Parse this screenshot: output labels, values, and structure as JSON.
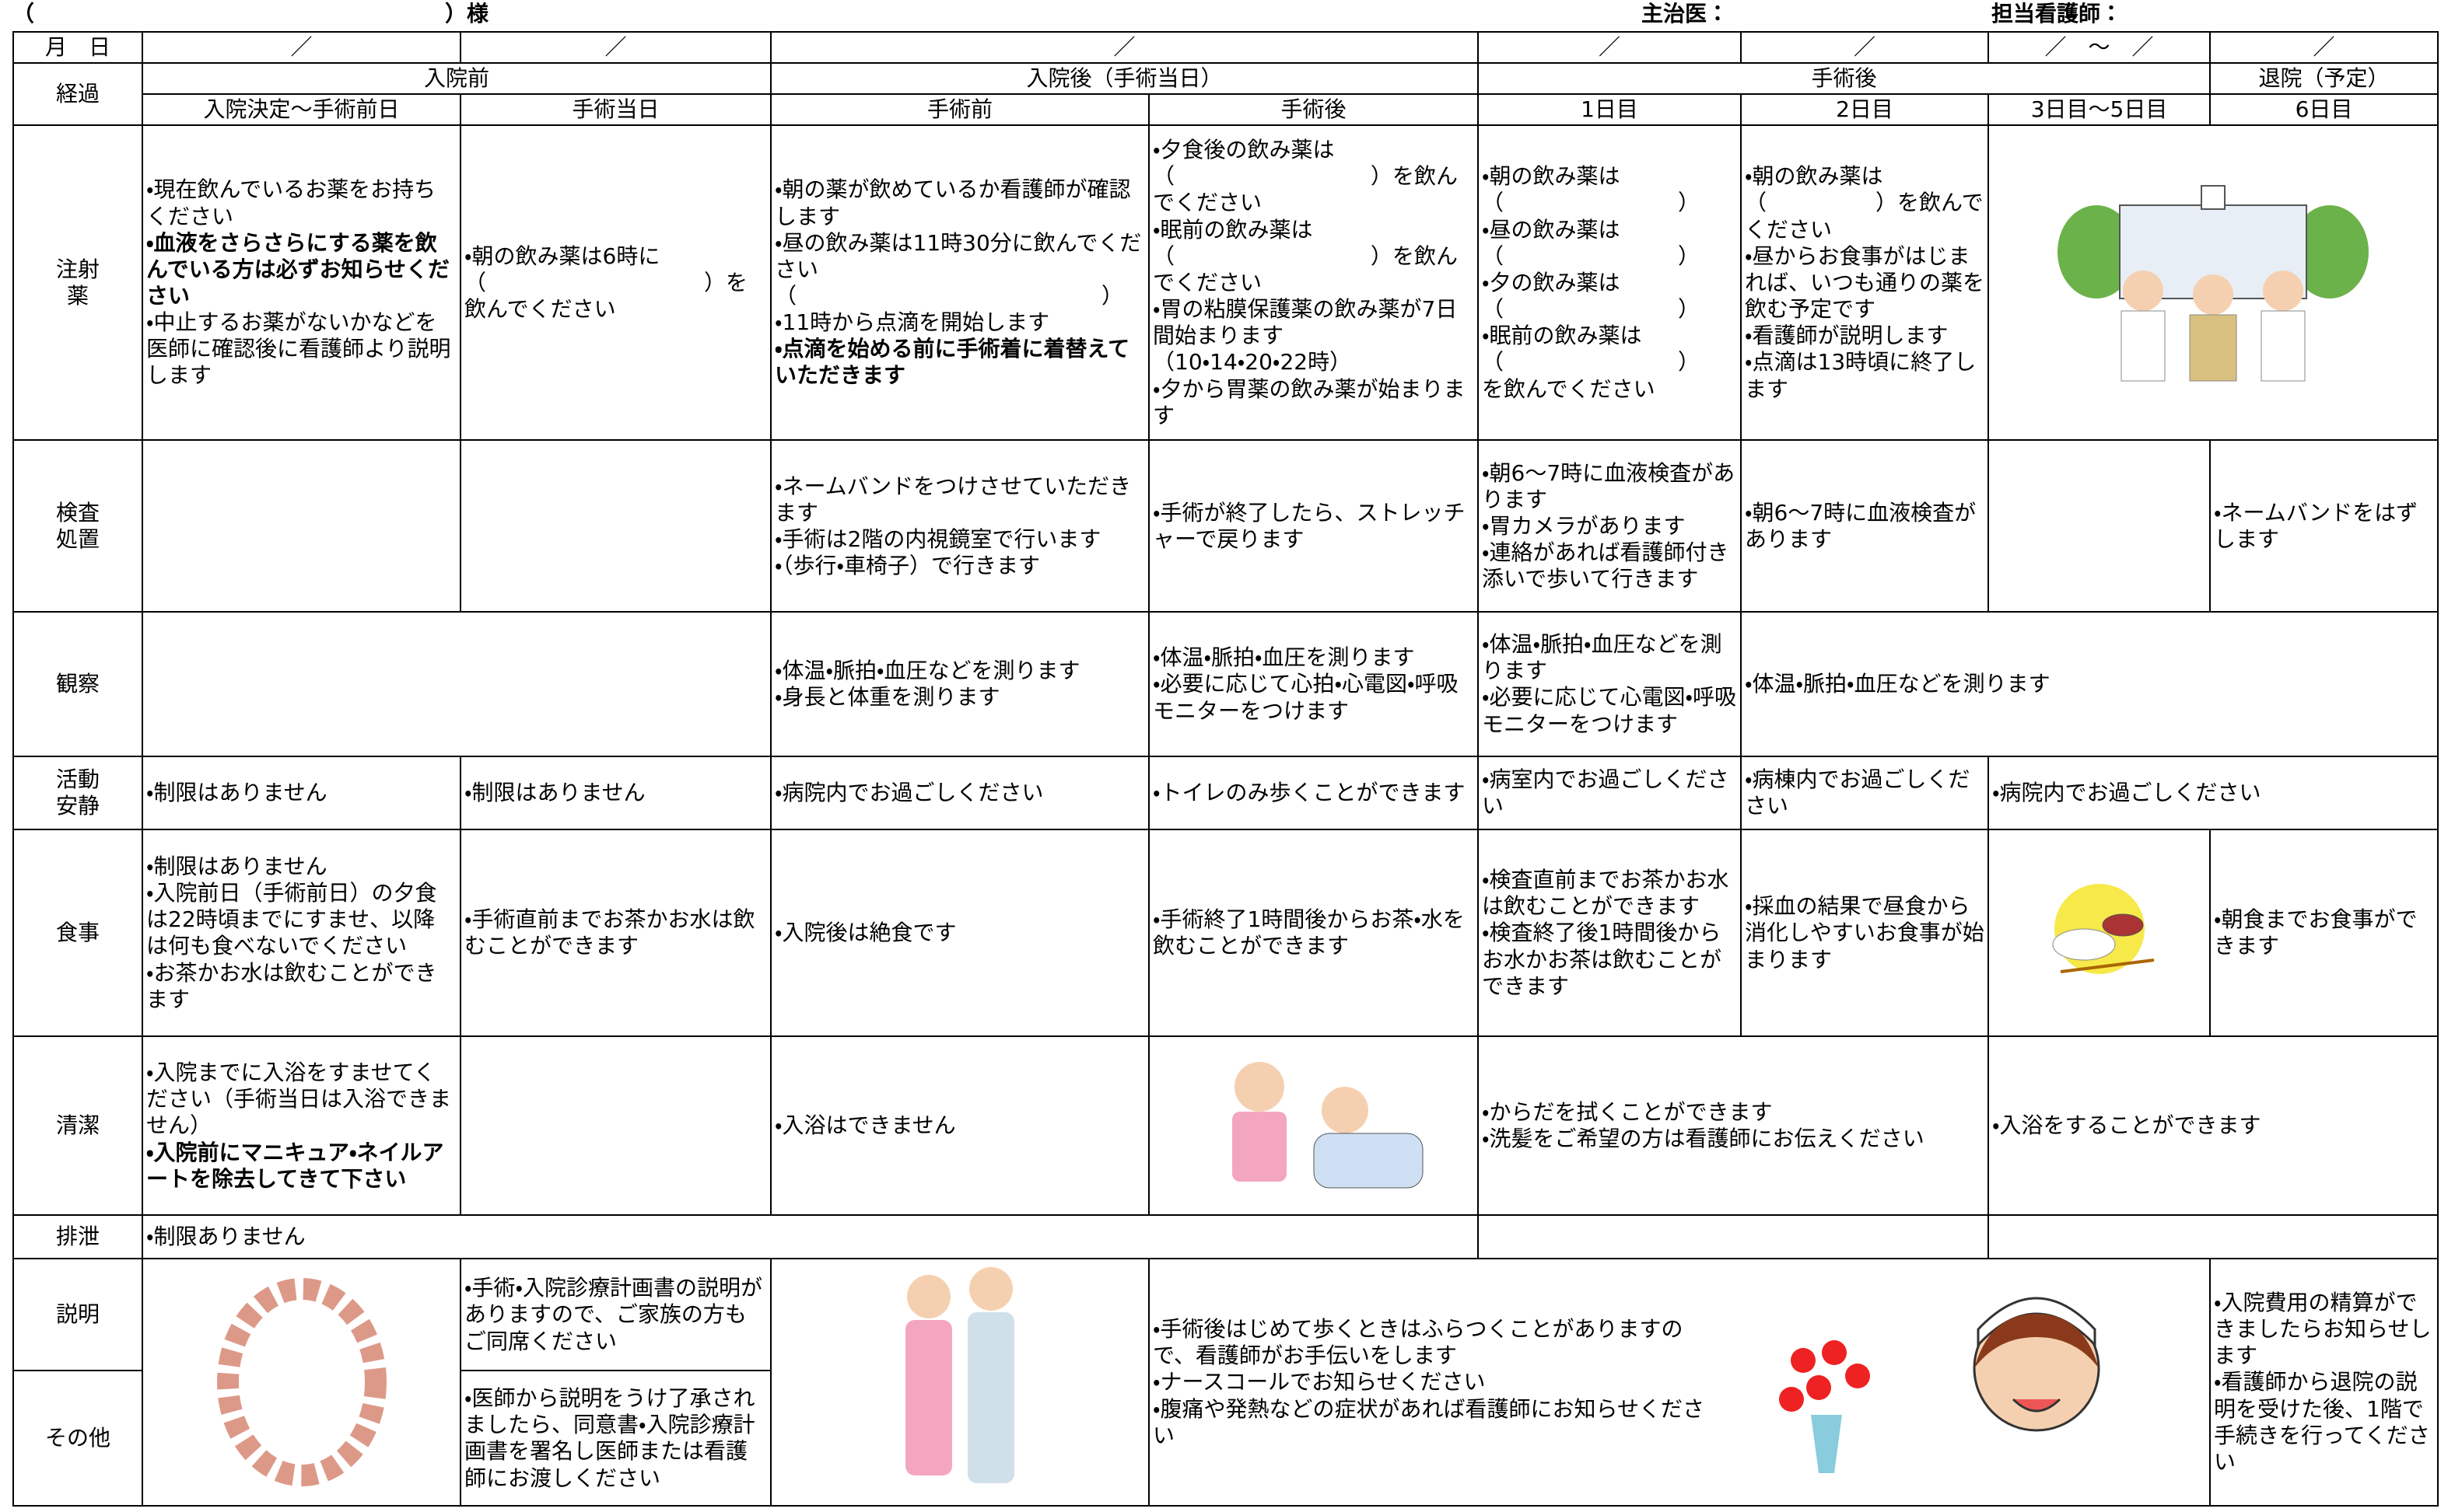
{
  "header": {
    "name_open": "（",
    "name_close": "）様",
    "doctor": "主治医：",
    "nurse": "担当看護師："
  },
  "table": {
    "date_row": {
      "label": "月　日",
      "cells": [
        "／",
        "／",
        "／",
        "／",
        "／",
        "／　〜　／",
        "／"
      ]
    },
    "progress": {
      "label": "経過",
      "groups": [
        "入院前",
        "入院後（手術当日）",
        "手術後",
        "退院（予定）"
      ],
      "days": [
        "入院決定～手術前日",
        "手術当日",
        "手術前",
        "手術後",
        "1日目",
        "2日目",
        "3日目～5日目",
        "6日目"
      ]
    },
    "rows": [
      {
        "label": [
          "注射",
          "薬"
        ],
        "cells": [
          [
            "・現在飲んでいるお薬をお持ちください",
            {
              "text": "・血液をさらさらにする薬を飲んでいる方は必ずお知らせください",
              "bold": true
            },
            "・中止するお薬がないかなどを医師に確認後に看護師より説明します"
          ],
          [
            "・朝の飲み薬は6時に",
            "（　　　　　　　　　　）を飲んでください"
          ],
          [
            "・朝の薬が飲めているか看護師が確認します",
            "・昼の飲み薬は11時30分に飲んでください",
            "（　　　　　　　　　　　　　　）",
            "・11時から点滴を開始します",
            {
              "text": "・点滴を始める前に手術着に着替えていただきます",
              "bold": true
            }
          ],
          [
            "・夕食後の飲み薬は",
            "（　　　　　　　　　）を飲んでください",
            "・眠前の飲み薬は",
            "（　　　　　　　　　）を飲んでください",
            "・胃の粘膜保護薬の飲み薬が7日間始まります",
            "（10・14・20・22時）",
            "・夕から胃薬の飲み薬が始まります"
          ],
          [
            "・朝の飲み薬は",
            "（　　　　　　　　）",
            "・昼の飲み薬は",
            "（　　　　　　　　）",
            "・夕の飲み薬は",
            "（　　　　　　　　）",
            "・眠前の飲み薬は",
            "（　　　　　　　　）",
            "を飲んでください"
          ],
          [
            "・朝の飲み薬は",
            "（　　　　　）を飲んでください",
            "・昼からお食事がはじまれば、いつも通りの薬を飲む予定です",
            "・看護師が説明します",
            "・点滴は13時頃に終了します"
          ],
          []
        ]
      },
      {
        "label": [
          "検査",
          "処置"
        ],
        "cells": [
          [],
          [],
          [
            "・ネームバンドをつけさせていただきます",
            "・手術は2階の内視鏡室で行います",
            "・（歩行・車椅子）で行きます"
          ],
          [
            "・手術が終了したら、ストレッチャーで戻ります"
          ],
          [
            "・朝6～7時に血液検査があります",
            "・胃カメラがあります",
            "・連絡があれば看護師付き添いで歩いて行きます"
          ],
          [
            "・朝6～7時に血液検査があります"
          ],
          [],
          [
            "・ネームバンドをはずします"
          ]
        ]
      },
      {
        "label": [
          "観察"
        ],
        "cells": [
          [],
          [
            "・体温・脈拍・血圧などを測ります",
            "・身長と体重を測ります"
          ],
          [
            "・体温・脈拍・血圧を測ります",
            "・必要に応じて心拍・心電図・呼吸モニターをつけます"
          ],
          [
            "・体温・脈拍・血圧などを測ります",
            "・必要に応じて心電図・呼吸モニターをつけます"
          ],
          [
            "・体温・脈拍・血圧などを測ります"
          ]
        ]
      },
      {
        "label": [
          "活動",
          "安静"
        ],
        "cells": [
          [
            "・制限はありません"
          ],
          [
            "・制限はありません"
          ],
          [
            "・病院内でお過ごしください"
          ],
          [
            "・トイレのみ歩くことができます"
          ],
          [
            "・病室内でお過ごしください"
          ],
          [
            "・病棟内でお過ごしください"
          ],
          [
            "・病院内でお過ごしください"
          ]
        ]
      },
      {
        "label": [
          "食事"
        ],
        "cells": [
          [
            "・制限はありません",
            "・入院前日（手術前日）の夕食は22時頃までにすませ、以降は何も食べないでください",
            "・お茶かお水は飲むことができます"
          ],
          [
            "・手術直前までお茶かお水は飲むことができます"
          ],
          [
            "・入院後は絶食です"
          ],
          [
            "・手術終了1時間後からお茶・水を飲むことができます"
          ],
          [
            "・検査直前までお茶かお水は飲むことができます",
            "・検査終了後1時間後からお水かお茶は飲むことができます"
          ],
          [
            "・採血の結果で昼食から消化しやすいお食事が始まります"
          ],
          [],
          [
            "・朝食までお食事ができます"
          ]
        ]
      },
      {
        "label": [
          "清潔"
        ],
        "cells": [
          [
            "・入院までに入浴をすませてください（手術当日は入浴できません）",
            {
              "text": "・入院前にマニキュア・ネイルアートを除去してきて下さい",
              "bold": true
            }
          ],
          [],
          [
            "・入浴はできません"
          ],
          [],
          [
            "・からだを拭くことができます",
            "・洗髪をご希望の方は看護師にお伝えください"
          ],
          [
            "・入浴をすることができます"
          ]
        ]
      },
      {
        "label": [
          "排泄"
        ],
        "cells": [
          [
            "・制限ありません"
          ],
          [],
          []
        ]
      },
      {
        "label": [
          "説明"
        ],
        "cells": [
          [],
          [
            "・手術・入院診療計画書の説明がありますので、ご家族の方もご同席ください"
          ],
          [],
          [
            "・手術後はじめて歩くときはふらつくことがありますので、看護師がお手伝いをします",
            "・ナースコールでお知らせください",
            "・腹痛や発熱などの症状があれば看護師にお知らせください"
          ],
          [
            "・入院費用の精算ができましたらお知らせします",
            "・看護師から退院の説明を受けた後、1階で手続きを行ってください"
          ]
        ]
      },
      {
        "label": [
          "その他"
        ],
        "cells": [
          [
            "・医師から説明をうけ了承されましたら、同意書・入院診療計画書を署名し医師または看護師にお渡しください"
          ]
        ]
      }
    ]
  }
}
